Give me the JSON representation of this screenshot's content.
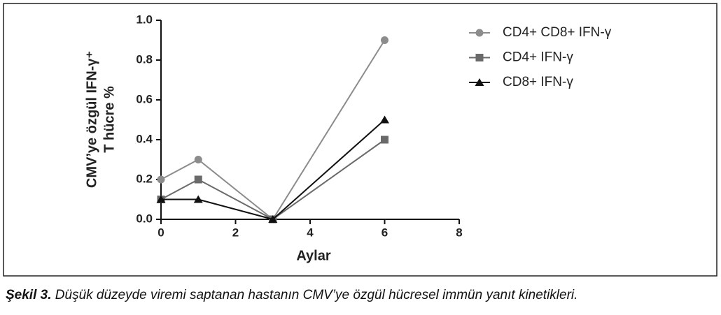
{
  "chart_data": {
    "type": "line",
    "ylabel": [
      "CMV’ye özgül IFN-γ⁺",
      "T hücre %"
    ],
    "xlabel": "Aylar",
    "x": [
      0,
      1,
      3,
      6
    ],
    "series": [
      {
        "name": "CD4+ CD8+  IFN-γ",
        "color": "#8c8c8c",
        "marker": "circle",
        "values": [
          0.2,
          0.3,
          0,
          0.9
        ]
      },
      {
        "name": "CD4+ IFN-γ",
        "color": "#6a6a6a",
        "marker": "square",
        "values": [
          0.1,
          0.2,
          0,
          0.4
        ]
      },
      {
        "name": "CD8+ IFN-γ",
        "color": "#111111",
        "marker": "triangle",
        "values": [
          0.1,
          0.1,
          0,
          0.5
        ]
      }
    ],
    "xlim": [
      0,
      8
    ],
    "xticks": [
      0,
      2,
      4,
      6,
      8
    ],
    "ylim": [
      0,
      1
    ],
    "yticks": [
      {
        "value": 0,
        "label": "0.0"
      },
      0.2,
      0.4,
      0.6,
      0.8,
      {
        "value": 1,
        "label": "1.0"
      }
    ],
    "grid": false,
    "legend": "upper right"
  },
  "caption": {
    "label": "Şekil 3.",
    "text": " Düşük düzeyde viremi saptanan hastanın CMV’ye özgül hücresel immün yanıt kinetikleri."
  }
}
